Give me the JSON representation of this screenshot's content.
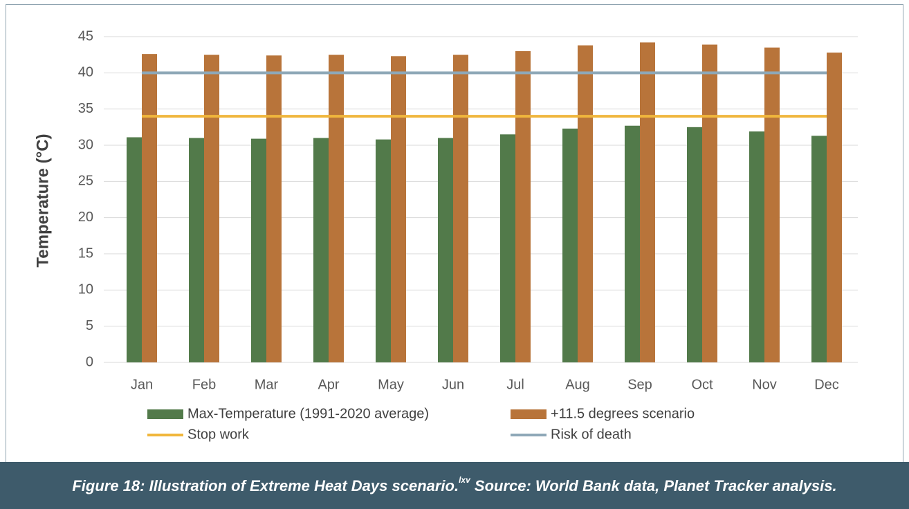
{
  "chart_data": {
    "type": "bar",
    "ylabel": "Temperature (°C)",
    "categories": [
      "Jan",
      "Feb",
      "Mar",
      "Apr",
      "May",
      "Jun",
      "Jul",
      "Aug",
      "Sep",
      "Oct",
      "Nov",
      "Dec"
    ],
    "series": [
      {
        "name": "Max-Temperature (1991-2020 average)",
        "type": "bar",
        "color": "#527a4a",
        "values": [
          31.1,
          31.0,
          30.9,
          31.0,
          30.8,
          31.0,
          31.5,
          32.3,
          32.7,
          32.5,
          31.9,
          31.3
        ]
      },
      {
        "name": "+11.5 degrees scenario",
        "type": "bar",
        "color": "#b8743a",
        "values": [
          42.6,
          42.5,
          42.4,
          42.5,
          42.3,
          42.5,
          43.0,
          43.8,
          44.2,
          43.9,
          43.5,
          42.8
        ]
      },
      {
        "name": "Stop work",
        "type": "line",
        "color": "#f0b63c",
        "values": [
          34,
          34,
          34,
          34,
          34,
          34,
          34,
          34,
          34,
          34,
          34,
          34
        ]
      },
      {
        "name": "Risk of death",
        "type": "line",
        "color": "#8ea8b7",
        "values": [
          40,
          40,
          40,
          40,
          40,
          40,
          40,
          40,
          40,
          40,
          40,
          40
        ]
      }
    ],
    "ylim": [
      0,
      45
    ],
    "yticks": [
      0,
      5,
      10,
      15,
      20,
      25,
      30,
      35,
      40,
      45
    ],
    "grid": true,
    "legend": "bottom"
  },
  "caption": {
    "text": "Figure 18: Illustration of Extreme Heat Days scenario.",
    "superscript": "lxv",
    "source": " Source: World Bank data, Planet Tracker analysis."
  }
}
